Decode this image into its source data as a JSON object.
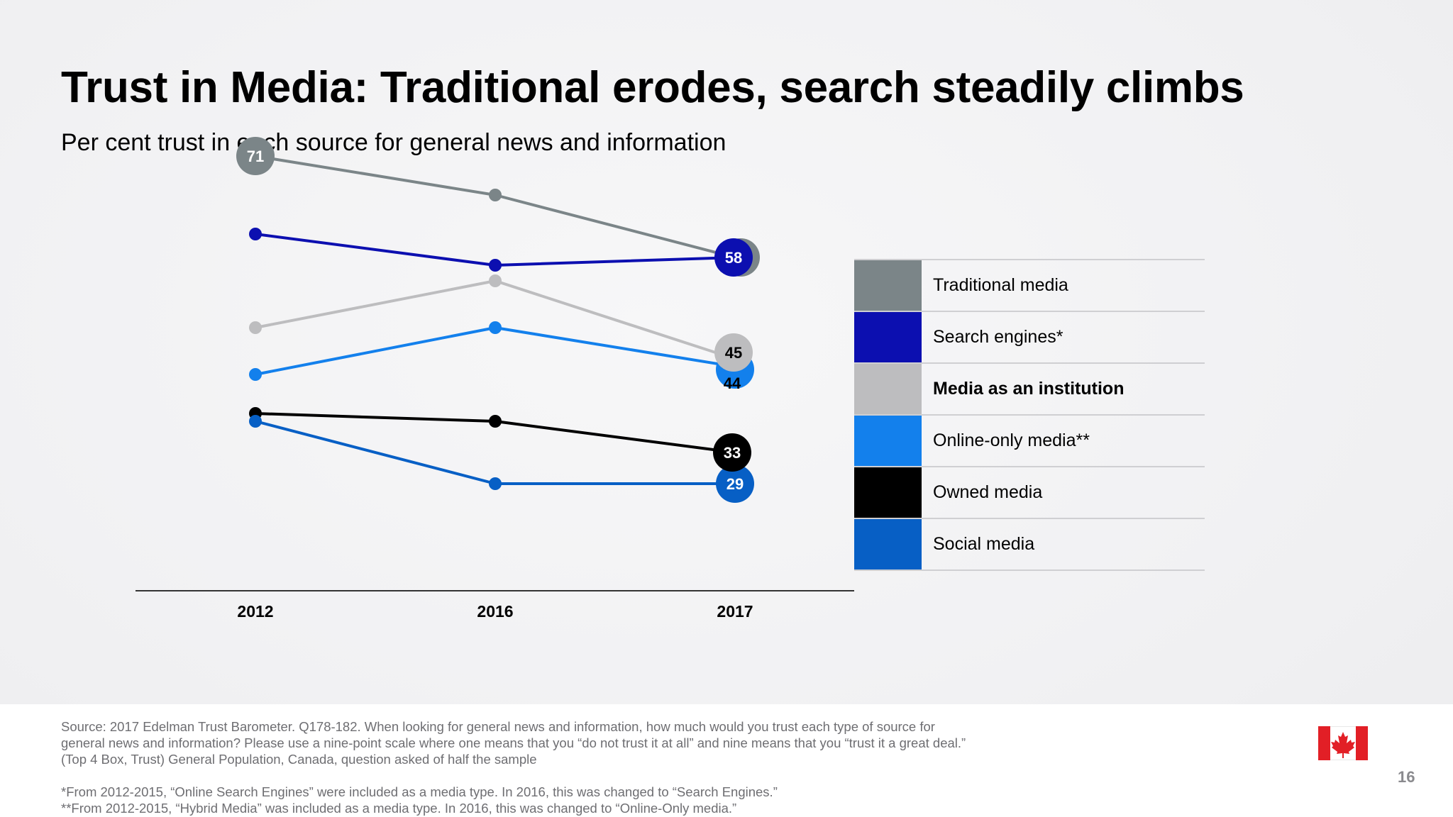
{
  "title": "Trust in Media: Traditional erodes, search steadily climbs",
  "subtitle": "Per cent trust in each source for general news and information",
  "chart_data": {
    "type": "line",
    "categories": [
      "2012",
      "2016",
      "2017"
    ],
    "series": [
      {
        "name": "Traditional media",
        "color": "#7b8588",
        "values": [
          71,
          66,
          58
        ],
        "labels": [
          "71",
          "",
          "58"
        ]
      },
      {
        "name": "Search engines*",
        "color": "#0c0fb0",
        "values": [
          61,
          57,
          58
        ],
        "labels": [
          "",
          "",
          "58"
        ]
      },
      {
        "name": "Media as an institution",
        "color": "#bdbdbf",
        "values": [
          49,
          55,
          45
        ],
        "labels": [
          "",
          "",
          "45"
        ]
      },
      {
        "name": "Online-only media**",
        "color": "#1380ec",
        "values": [
          43,
          49,
          44
        ],
        "labels": [
          "",
          "",
          "44"
        ]
      },
      {
        "name": "Owned media",
        "color": "#000000",
        "values": [
          38,
          37,
          33
        ],
        "labels": [
          "",
          "",
          "33"
        ]
      },
      {
        "name": "Social media",
        "color": "#075fc5",
        "values": [
          37,
          29,
          29
        ],
        "labels": [
          "",
          "",
          "29"
        ]
      }
    ],
    "ylim": [
      20,
      80
    ],
    "grid": false,
    "legend": "right"
  },
  "legend": {
    "items": [
      {
        "label": "Traditional media",
        "color": "#7b8588",
        "bold": false
      },
      {
        "label": "Search engines*",
        "color": "#0c0fb0",
        "bold": false
      },
      {
        "label": "Media as an institution",
        "color": "#bdbdbf",
        "bold": true
      },
      {
        "label": "Online-only media**",
        "color": "#1380ec",
        "bold": false
      },
      {
        "label": "Owned media",
        "color": "#000000",
        "bold": false
      },
      {
        "label": "Social media",
        "color": "#075fc5",
        "bold": false
      }
    ]
  },
  "footer": {
    "source_lines": [
      "Source: 2017 Edelman Trust Barometer. Q178-182. When looking for general news and information, how much would you trust each type of source for",
      "general news and information? Please use a nine-point scale where one means that you “do not trust it at all” and nine means that you “trust it a great deal.”",
      "(Top 4 Box, Trust) General Population, Canada, question asked of half the sample"
    ],
    "notes": [
      "*From 2012-2015, “Online Search Engines” were included as a media type. In 2016, this was changed to “Search Engines.”",
      "**From 2012-2015, “Hybrid Media” was included as a media type. In 2016, this was changed to “Online-Only media.”"
    ],
    "page_number": "16",
    "flag_icon": "canada-flag-icon"
  }
}
